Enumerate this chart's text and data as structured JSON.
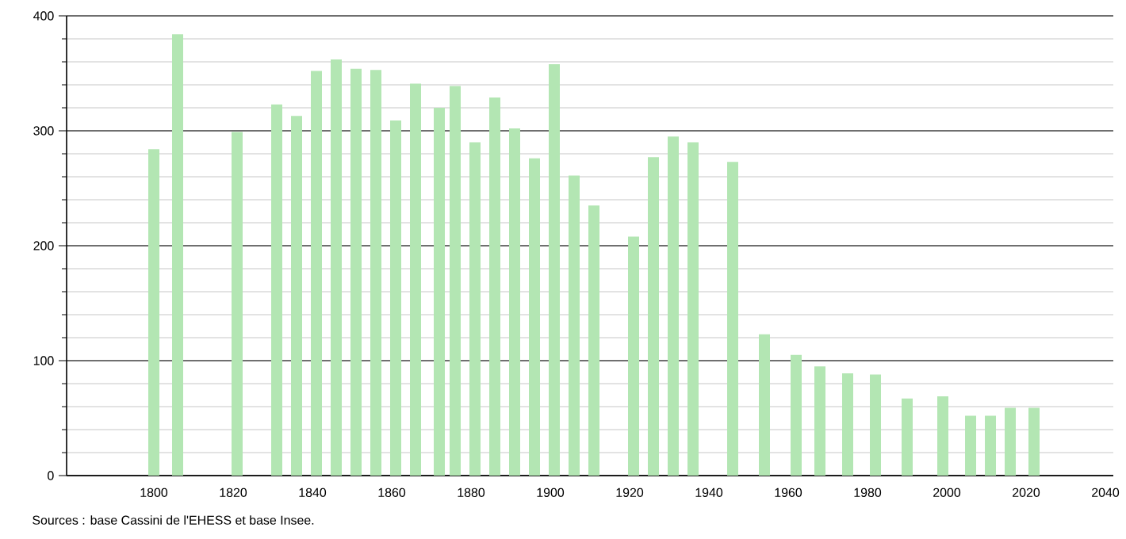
{
  "chart_data": {
    "type": "bar",
    "color": "#b3e6b3",
    "x": [
      1800,
      1806,
      1821,
      1831,
      1836,
      1841,
      1846,
      1851,
      1856,
      1861,
      1866,
      1872,
      1876,
      1881,
      1886,
      1891,
      1896,
      1901,
      1906,
      1911,
      1921,
      1926,
      1931,
      1936,
      1946,
      1954,
      1962,
      1968,
      1975,
      1982,
      1990,
      1999,
      2006,
      2011,
      2016,
      2022
    ],
    "values": [
      284,
      384,
      299,
      323,
      313,
      352,
      362,
      354,
      353,
      309,
      341,
      320,
      339,
      290,
      329,
      302,
      276,
      358,
      261,
      235,
      208,
      277,
      295,
      290,
      273,
      123,
      105,
      95,
      89,
      88,
      67,
      69,
      52,
      52,
      59,
      59
    ],
    "xlim": [
      1778,
      2042
    ],
    "xticks": [
      1800,
      1820,
      1840,
      1860,
      1880,
      1900,
      1920,
      1940,
      1960,
      1980,
      2000,
      2020,
      2040
    ],
    "ylim": [
      0,
      400
    ],
    "yticks": [
      0,
      {
        "value": 20,
        "label": null
      },
      {
        "value": 40,
        "label": null
      },
      {
        "value": 60,
        "label": null
      },
      {
        "value": 80,
        "label": null
      },
      100,
      {
        "value": 120,
        "label": null
      },
      {
        "value": 140,
        "label": null
      },
      {
        "value": 160,
        "label": null
      },
      {
        "value": 180,
        "label": null
      },
      200,
      {
        "value": 220,
        "label": null
      },
      {
        "value": 240,
        "label": null
      },
      {
        "value": 260,
        "label": null
      },
      {
        "value": 280,
        "label": null
      },
      300,
      {
        "value": 320,
        "label": null
      },
      {
        "value": 340,
        "label": null
      },
      {
        "value": 360,
        "label": null
      },
      {
        "value": 380,
        "label": null
      },
      400
    ],
    "grid": "y",
    "annotations": [
      "Sources : base Cassini de l'EHESS et base Insee."
    ]
  }
}
